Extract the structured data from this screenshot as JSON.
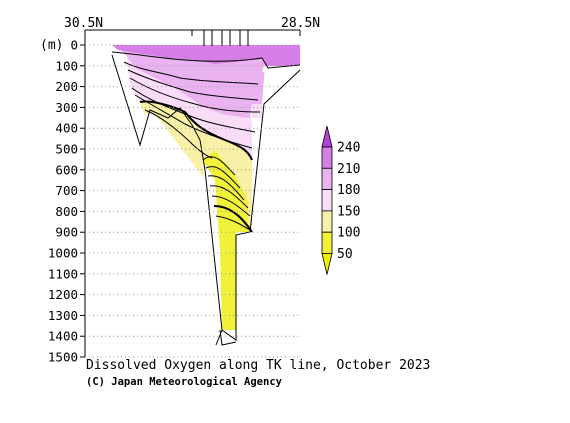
{
  "chart_data": {
    "type": "heatmap",
    "title": "Dissolved Oxygen along TK line, October 2023",
    "credit": "(C) Japan Meteorological Agency",
    "x_left_label": "30.5N",
    "x_right_label": "28.5N",
    "ylabel": "(m)",
    "y_ticks": [
      0,
      100,
      200,
      300,
      400,
      500,
      600,
      700,
      800,
      900,
      1000,
      1100,
      1200,
      1300,
      1400,
      1500
    ],
    "ylim": [
      0,
      1500
    ],
    "colorbar": {
      "labels": [
        "240",
        "210",
        "180",
        "150",
        "100",
        "50"
      ],
      "colors": [
        "#b640d8",
        "#d47ee6",
        "#eab2f0",
        "#f8dcf8",
        "#f7f0a6",
        "#f1f13a",
        "#eeee00"
      ]
    }
  }
}
